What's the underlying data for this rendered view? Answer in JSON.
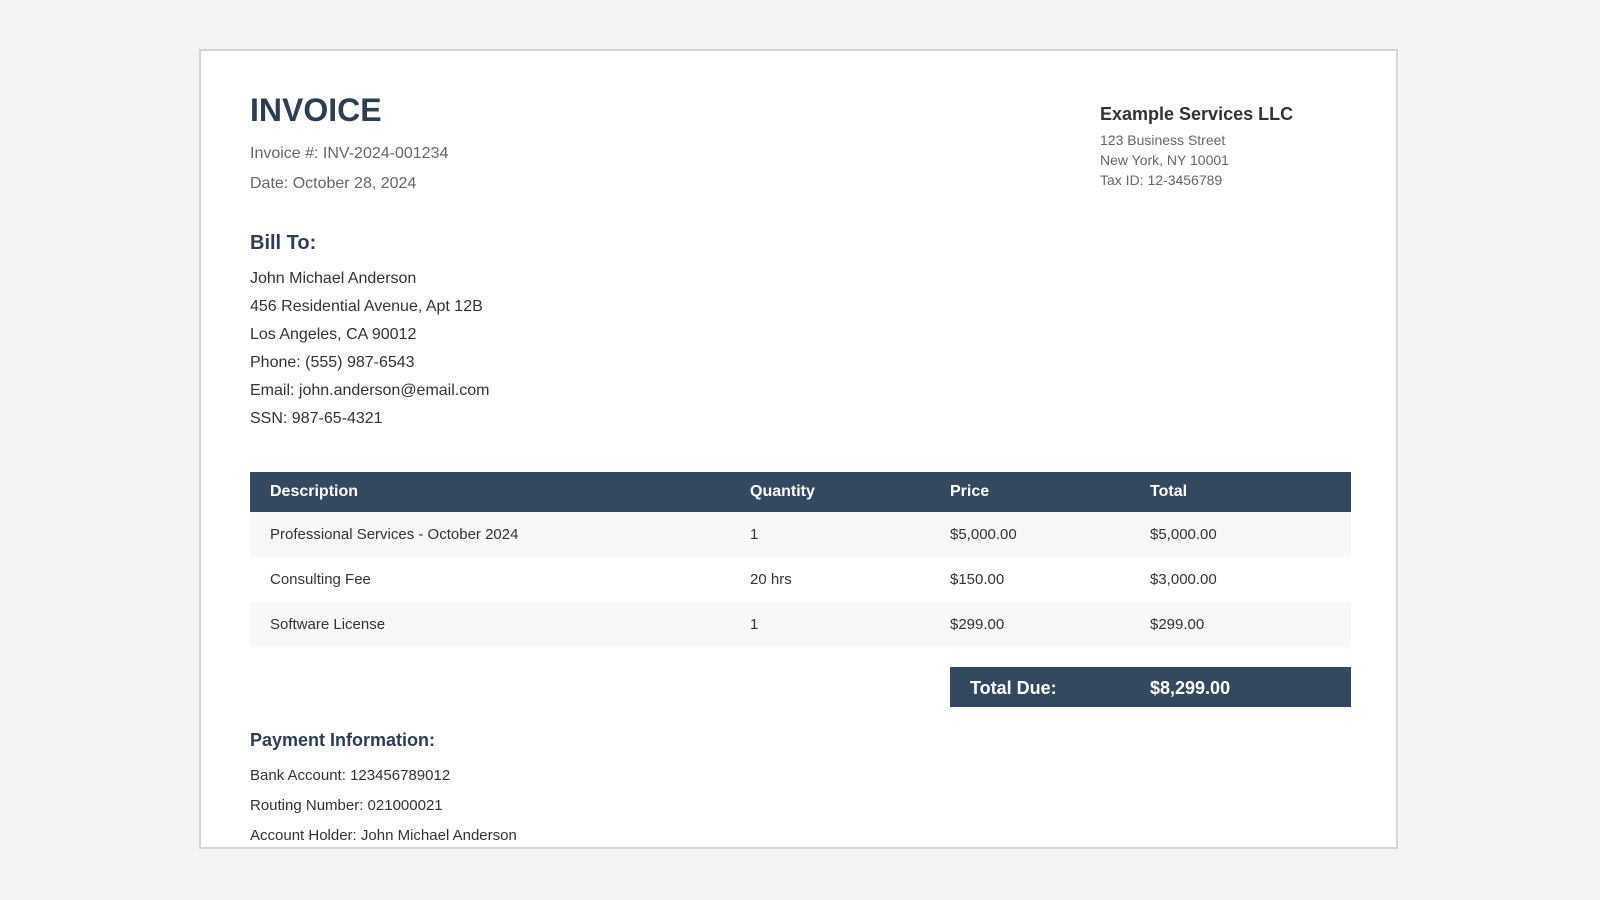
{
  "invoice": {
    "title": "INVOICE",
    "number_line": "Invoice #: INV-2024-001234",
    "date_line": "Date: October 28, 2024"
  },
  "company": {
    "name": "Example Services LLC",
    "street": "123 Business Street",
    "city": "New York, NY 10001",
    "tax_id": "Tax ID: 12-3456789"
  },
  "bill_to": {
    "heading": "Bill To:",
    "name": "John Michael Anderson",
    "street": "456 Residential Avenue, Apt 12B",
    "city": "Los Angeles, CA 90012",
    "phone": "Phone: (555) 987-6543",
    "email": "Email: john.anderson@email.com",
    "ssn": "SSN: 987-65-4321"
  },
  "table": {
    "headers": {
      "description": "Description",
      "quantity": "Quantity",
      "price": "Price",
      "total": "Total"
    },
    "rows": [
      {
        "description": "Professional Services - October 2024",
        "quantity": "1",
        "price": "$5,000.00",
        "total": "$5,000.00"
      },
      {
        "description": "Consulting Fee",
        "quantity": "20 hrs",
        "price": "$150.00",
        "total": "$3,000.00"
      },
      {
        "description": "Software License",
        "quantity": "1",
        "price": "$299.00",
        "total": "$299.00"
      }
    ]
  },
  "total_due": {
    "label": "Total Due:",
    "value": "$8,299.00"
  },
  "payment": {
    "heading": "Payment Information:",
    "bank_account": "Bank Account: 123456789012",
    "routing": "Routing Number: 021000021",
    "holder": "Account Holder: John Michael Anderson"
  },
  "colors": {
    "page_background": "#f4f4f4",
    "header_dark": "#34495e",
    "title_text": "#2c3e50",
    "muted_text": "#666666"
  }
}
